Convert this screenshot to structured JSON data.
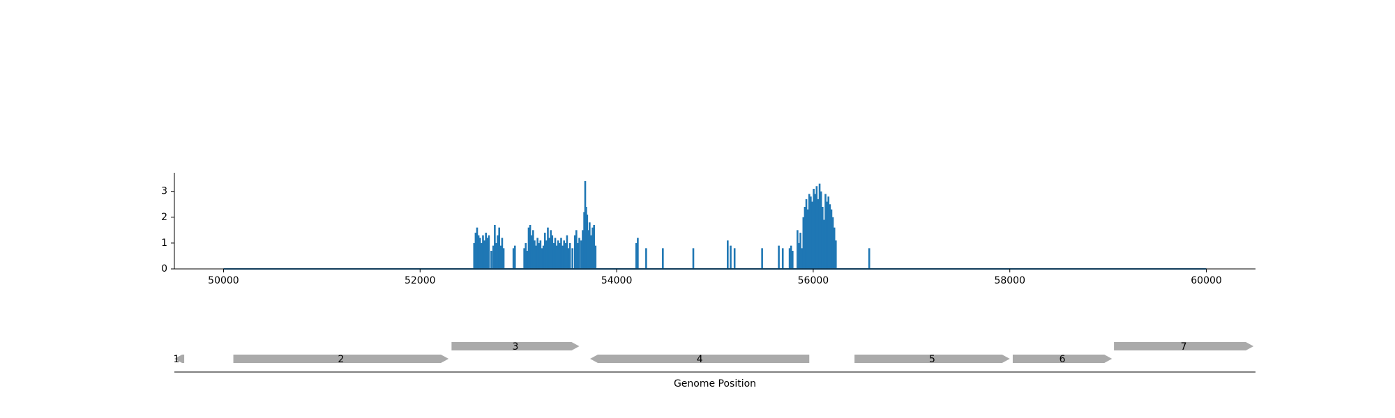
{
  "chart_data": [
    {
      "type": "area",
      "title": "",
      "xlabel": "",
      "ylabel": "",
      "xlim": [
        49500,
        60500
      ],
      "ylim": [
        0,
        3.7
      ],
      "x_ticks": [
        {
          "value": 50000,
          "label": "50000"
        },
        {
          "value": 52000,
          "label": "52000"
        },
        {
          "value": 54000,
          "label": "54000"
        },
        {
          "value": 56000,
          "label": "56000"
        },
        {
          "value": 58000,
          "label": "58000"
        },
        {
          "value": 60000,
          "label": "60000"
        }
      ],
      "y_ticks": [
        {
          "value": 0,
          "label": "0"
        },
        {
          "value": 1,
          "label": "1"
        },
        {
          "value": 2,
          "label": "2"
        },
        {
          "value": 3,
          "label": "3"
        }
      ],
      "grid": false,
      "color": "#1f77b4",
      "x_range": [
        50000,
        60000
      ],
      "baseline": 0,
      "peaks": [
        [
          52550,
          1.0
        ],
        [
          52565,
          1.4
        ],
        [
          52580,
          1.6
        ],
        [
          52595,
          1.3
        ],
        [
          52610,
          1.2
        ],
        [
          52625,
          1.0
        ],
        [
          52640,
          1.3
        ],
        [
          52655,
          1.1
        ],
        [
          52670,
          1.4
        ],
        [
          52685,
          1.2
        ],
        [
          52700,
          1.3
        ],
        [
          52725,
          0.7
        ],
        [
          52745,
          0.9
        ],
        [
          52760,
          1.7
        ],
        [
          52775,
          1.0
        ],
        [
          52790,
          1.3
        ],
        [
          52805,
          1.6
        ],
        [
          52820,
          0.9
        ],
        [
          52835,
          1.2
        ],
        [
          52850,
          0.8
        ],
        [
          52950,
          0.8
        ],
        [
          52965,
          0.9
        ],
        [
          53060,
          0.8
        ],
        [
          53075,
          1.0
        ],
        [
          53090,
          0.7
        ],
        [
          53105,
          1.6
        ],
        [
          53120,
          1.7
        ],
        [
          53135,
          1.3
        ],
        [
          53150,
          1.5
        ],
        [
          53165,
          1.1
        ],
        [
          53180,
          0.9
        ],
        [
          53195,
          1.2
        ],
        [
          53210,
          1.0
        ],
        [
          53225,
          1.1
        ],
        [
          53240,
          0.8
        ],
        [
          53255,
          0.9
        ],
        [
          53270,
          1.4
        ],
        [
          53285,
          1.1
        ],
        [
          53300,
          1.6
        ],
        [
          53315,
          1.2
        ],
        [
          53330,
          1.5
        ],
        [
          53345,
          1.3
        ],
        [
          53360,
          1.0
        ],
        [
          53375,
          1.2
        ],
        [
          53390,
          0.9
        ],
        [
          53405,
          1.1
        ],
        [
          53420,
          1.0
        ],
        [
          53435,
          1.2
        ],
        [
          53450,
          0.9
        ],
        [
          53465,
          1.1
        ],
        [
          53480,
          1.0
        ],
        [
          53495,
          1.3
        ],
        [
          53510,
          0.8
        ],
        [
          53525,
          1.0
        ],
        [
          53550,
          0.8
        ],
        [
          53575,
          1.3
        ],
        [
          53590,
          1.5
        ],
        [
          53605,
          1.0
        ],
        [
          53620,
          1.2
        ],
        [
          53640,
          1.1
        ],
        [
          53655,
          1.5
        ],
        [
          53670,
          2.2
        ],
        [
          53680,
          3.4
        ],
        [
          53690,
          2.4
        ],
        [
          53700,
          2.1
        ],
        [
          53710,
          1.5
        ],
        [
          53725,
          1.8
        ],
        [
          53740,
          1.3
        ],
        [
          53755,
          1.6
        ],
        [
          53770,
          1.7
        ],
        [
          53785,
          0.9
        ],
        [
          54200,
          1.0
        ],
        [
          54215,
          1.2
        ],
        [
          54300,
          0.8
        ],
        [
          54470,
          0.8
        ],
        [
          54780,
          0.8
        ],
        [
          55130,
          1.1
        ],
        [
          55160,
          0.9
        ],
        [
          55200,
          0.8
        ],
        [
          55480,
          0.8
        ],
        [
          55650,
          0.9
        ],
        [
          55690,
          0.8
        ],
        [
          55760,
          0.8
        ],
        [
          55775,
          0.9
        ],
        [
          55790,
          0.7
        ],
        [
          55840,
          1.5
        ],
        [
          55855,
          1.0
        ],
        [
          55870,
          1.4
        ],
        [
          55885,
          0.8
        ],
        [
          55900,
          2.0
        ],
        [
          55915,
          2.4
        ],
        [
          55930,
          2.7
        ],
        [
          55945,
          2.3
        ],
        [
          55960,
          2.9
        ],
        [
          55975,
          2.8
        ],
        [
          55990,
          2.6
        ],
        [
          56005,
          3.1
        ],
        [
          56020,
          2.9
        ],
        [
          56035,
          3.2
        ],
        [
          56050,
          2.7
        ],
        [
          56065,
          3.3
        ],
        [
          56080,
          3.0
        ],
        [
          56095,
          2.4
        ],
        [
          56110,
          1.9
        ],
        [
          56125,
          2.9
        ],
        [
          56140,
          2.6
        ],
        [
          56155,
          2.8
        ],
        [
          56170,
          2.5
        ],
        [
          56185,
          2.3
        ],
        [
          56200,
          2.0
        ],
        [
          56215,
          1.6
        ],
        [
          56230,
          1.1
        ],
        [
          56570,
          0.8
        ]
      ]
    },
    {
      "type": "gene-track",
      "xlabel": "Genome Position",
      "xlim": [
        49500,
        60500
      ],
      "genes": [
        {
          "label": "1",
          "start": 49500,
          "end": 49600,
          "strand": "-",
          "row": 0
        },
        {
          "label": "2",
          "start": 50100,
          "end": 52290,
          "strand": "+",
          "row": 0
        },
        {
          "label": "3",
          "start": 52320,
          "end": 53620,
          "strand": "+",
          "row": 1
        },
        {
          "label": "4",
          "start": 53730,
          "end": 55960,
          "strand": "-",
          "row": 0
        },
        {
          "label": "5",
          "start": 56420,
          "end": 58000,
          "strand": "+",
          "row": 0
        },
        {
          "label": "6",
          "start": 58030,
          "end": 59040,
          "strand": "+",
          "row": 0
        },
        {
          "label": "7",
          "start": 59060,
          "end": 60480,
          "strand": "+",
          "row": 1
        }
      ],
      "color": "#aaaaaa"
    }
  ]
}
